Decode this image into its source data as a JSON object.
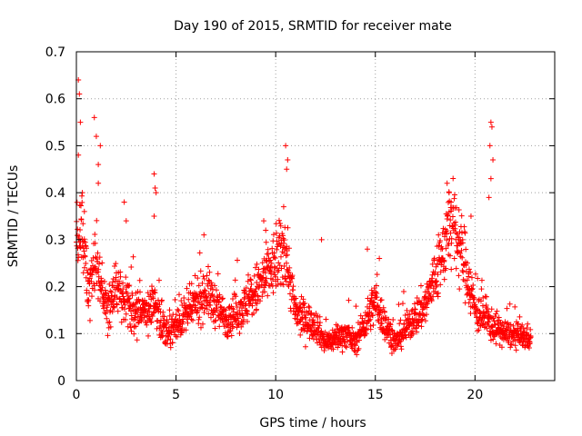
{
  "chart_data": {
    "type": "scatter",
    "title": "Day 190 of 2015, SRMTID for receiver mate",
    "xlabel": "GPS time / hours",
    "ylabel": "SRMTID / TECUs",
    "xlim": [
      0,
      24
    ],
    "ylim": [
      0,
      0.7
    ],
    "x_ticks": [
      0,
      5,
      10,
      15,
      20
    ],
    "x_tick_labels": [
      "0",
      "5",
      "10",
      "15",
      "20"
    ],
    "y_ticks": [
      0,
      0.1,
      0.2,
      0.3,
      0.4,
      0.5,
      0.6,
      0.7
    ],
    "y_tick_labels": [
      "0",
      "0.1",
      "0.2",
      "0.3",
      "0.4",
      "0.5",
      "0.6",
      "0.7"
    ],
    "grid": true,
    "marker": "plus",
    "marker_color": "#ff0000",
    "series": [
      {
        "name": "SRMTID",
        "approx_points": 2000,
        "x_range": [
          0,
          22.8
        ],
        "baseline_profile": [
          {
            "x": 0.0,
            "y": 0.28
          },
          {
            "x": 0.3,
            "y": 0.32
          },
          {
            "x": 0.6,
            "y": 0.2
          },
          {
            "x": 1.0,
            "y": 0.26
          },
          {
            "x": 1.5,
            "y": 0.15
          },
          {
            "x": 2.0,
            "y": 0.2
          },
          {
            "x": 3.0,
            "y": 0.14
          },
          {
            "x": 4.0,
            "y": 0.16
          },
          {
            "x": 4.5,
            "y": 0.1
          },
          {
            "x": 5.5,
            "y": 0.14
          },
          {
            "x": 6.5,
            "y": 0.19
          },
          {
            "x": 7.5,
            "y": 0.13
          },
          {
            "x": 8.5,
            "y": 0.16
          },
          {
            "x": 9.5,
            "y": 0.22
          },
          {
            "x": 10.5,
            "y": 0.28
          },
          {
            "x": 11.0,
            "y": 0.14
          },
          {
            "x": 12.0,
            "y": 0.12
          },
          {
            "x": 12.5,
            "y": 0.08
          },
          {
            "x": 13.5,
            "y": 0.1
          },
          {
            "x": 14.0,
            "y": 0.08
          },
          {
            "x": 15.0,
            "y": 0.17
          },
          {
            "x": 15.5,
            "y": 0.12
          },
          {
            "x": 16.0,
            "y": 0.08
          },
          {
            "x": 16.5,
            "y": 0.11
          },
          {
            "x": 17.5,
            "y": 0.16
          },
          {
            "x": 18.3,
            "y": 0.26
          },
          {
            "x": 18.8,
            "y": 0.34
          },
          {
            "x": 19.5,
            "y": 0.25
          },
          {
            "x": 20.0,
            "y": 0.15
          },
          {
            "x": 20.8,
            "y": 0.12
          },
          {
            "x": 21.5,
            "y": 0.1
          },
          {
            "x": 22.8,
            "y": 0.09
          }
        ],
        "spikes": [
          {
            "x": 0.1,
            "y": 0.64
          },
          {
            "x": 0.15,
            "y": 0.61
          },
          {
            "x": 0.2,
            "y": 0.55
          },
          {
            "x": 0.1,
            "y": 0.48
          },
          {
            "x": 0.3,
            "y": 0.4
          },
          {
            "x": 0.4,
            "y": 0.36
          },
          {
            "x": 0.9,
            "y": 0.56
          },
          {
            "x": 1.0,
            "y": 0.52
          },
          {
            "x": 1.2,
            "y": 0.5
          },
          {
            "x": 1.1,
            "y": 0.46
          },
          {
            "x": 1.1,
            "y": 0.42
          },
          {
            "x": 2.4,
            "y": 0.38
          },
          {
            "x": 2.5,
            "y": 0.34
          },
          {
            "x": 3.9,
            "y": 0.44
          },
          {
            "x": 3.95,
            "y": 0.41
          },
          {
            "x": 4.0,
            "y": 0.4
          },
          {
            "x": 3.9,
            "y": 0.35
          },
          {
            "x": 6.4,
            "y": 0.31
          },
          {
            "x": 9.4,
            "y": 0.34
          },
          {
            "x": 9.5,
            "y": 0.32
          },
          {
            "x": 10.5,
            "y": 0.5
          },
          {
            "x": 10.6,
            "y": 0.47
          },
          {
            "x": 10.55,
            "y": 0.45
          },
          {
            "x": 10.4,
            "y": 0.37
          },
          {
            "x": 12.3,
            "y": 0.3
          },
          {
            "x": 14.6,
            "y": 0.28
          },
          {
            "x": 15.2,
            "y": 0.26
          },
          {
            "x": 18.6,
            "y": 0.42
          },
          {
            "x": 18.7,
            "y": 0.4
          },
          {
            "x": 18.8,
            "y": 0.38
          },
          {
            "x": 19.8,
            "y": 0.35
          },
          {
            "x": 20.8,
            "y": 0.55
          },
          {
            "x": 20.85,
            "y": 0.54
          },
          {
            "x": 20.75,
            "y": 0.5
          },
          {
            "x": 20.9,
            "y": 0.47
          },
          {
            "x": 20.8,
            "y": 0.43
          },
          {
            "x": 20.7,
            "y": 0.39
          }
        ]
      }
    ]
  }
}
